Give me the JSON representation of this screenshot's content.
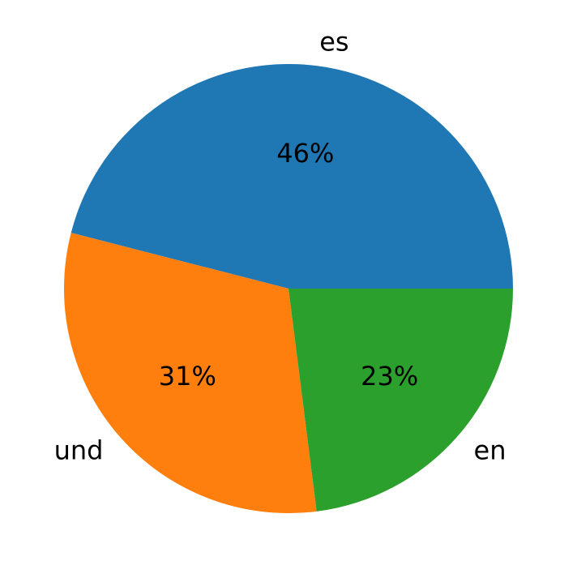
{
  "chart_data": {
    "type": "pie",
    "categories": [
      "es",
      "und",
      "en"
    ],
    "values": [
      46,
      31,
      23
    ],
    "value_labels": [
      "46%",
      "31%",
      "23%"
    ],
    "colors": [
      "#1f77b4",
      "#ff7f0e",
      "#2ca02c"
    ]
  }
}
